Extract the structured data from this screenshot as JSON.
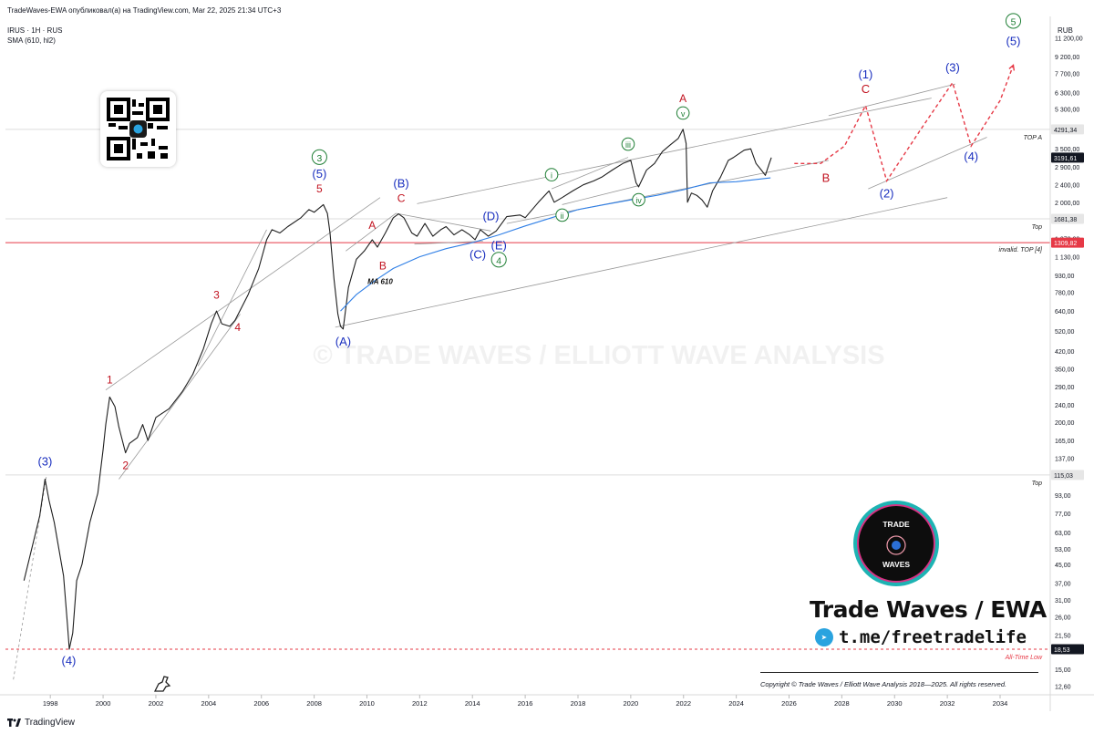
{
  "header": {
    "publisher_line": "TradeWaves-EWA опубликовал(а) на TradingView.com, Mar 22, 2025 21:34 UTC+3",
    "symbol_line": "IRUS · 1H · RUS",
    "indicator_line": "SMA (610, hl2)",
    "currency": "RUB"
  },
  "footer": {
    "brand": "TradingView",
    "copyright": "Copyright © Trade Waves / Elliott Wave Analysis 2018—2025. All rights reserved."
  },
  "branding": {
    "logo_top": "TRADE",
    "logo_bottom": "WAVES",
    "title": "Trade Waves / EWA",
    "telegram": "t.me/freetradelife",
    "watermark": "© TRADE WAVES / ELLIOTT WAVE ANALYSIS"
  },
  "colors": {
    "price": "#1e1e1e",
    "ma_line": "#2f7fe6",
    "blue_label": "#1a2fbf",
    "red_label": "#c1121f",
    "green_label": "#1e7e34",
    "projection": "#e63946",
    "hline": "#dddddd",
    "invalid_line": "#e63946"
  },
  "chart_data": {
    "type": "line",
    "scale": "log",
    "ylim": [
      11.5,
      14000
    ],
    "xlim": [
      1996.3,
      2035.9
    ],
    "x_ticks": [
      "1998",
      "2000",
      "2002",
      "2004",
      "2006",
      "2008",
      "2010",
      "2012",
      "2014",
      "2016",
      "2018",
      "2020",
      "2022",
      "2024",
      "2026",
      "2028",
      "2030",
      "2032",
      "2034"
    ],
    "y_ticks": [
      {
        "v": 12.6,
        "t": "12,60"
      },
      {
        "v": 15,
        "t": "15,00"
      },
      {
        "v": 21.5,
        "t": "21,50"
      },
      {
        "v": 26,
        "t": "26,00"
      },
      {
        "v": 31,
        "t": "31,00"
      },
      {
        "v": 37,
        "t": "37,00"
      },
      {
        "v": 45,
        "t": "45,00"
      },
      {
        "v": 53,
        "t": "53,00"
      },
      {
        "v": 63,
        "t": "63,00"
      },
      {
        "v": 77,
        "t": "77,00"
      },
      {
        "v": 93,
        "t": "93,00"
      },
      {
        "v": 137,
        "t": "137,00"
      },
      {
        "v": 165,
        "t": "165,00"
      },
      {
        "v": 200,
        "t": "200,00"
      },
      {
        "v": 240,
        "t": "240,00"
      },
      {
        "v": 290,
        "t": "290,00"
      },
      {
        "v": 350,
        "t": "350,00"
      },
      {
        "v": 420,
        "t": "420,00"
      },
      {
        "v": 520,
        "t": "520,00"
      },
      {
        "v": 640,
        "t": "640,00"
      },
      {
        "v": 780,
        "t": "780,00"
      },
      {
        "v": 930,
        "t": "930,00"
      },
      {
        "v": 1130,
        "t": "1 130,00"
      },
      {
        "v": 1370,
        "t": "1 370,00"
      },
      {
        "v": 2000,
        "t": "2 000,00"
      },
      {
        "v": 2400,
        "t": "2 400,00"
      },
      {
        "v": 2900,
        "t": "2 900,00"
      },
      {
        "v": 3500,
        "t": "3 500,00"
      },
      {
        "v": 5300,
        "t": "5 300,00"
      },
      {
        "v": 6300,
        "t": "6 300,00"
      },
      {
        "v": 7700,
        "t": "7 700,00"
      },
      {
        "v": 9200,
        "t": "9 200,00"
      },
      {
        "v": 11200,
        "t": "11 200,00"
      }
    ],
    "price_tags": [
      {
        "v": 4291.34,
        "t": "4291,34",
        "style": "gray"
      },
      {
        "v": 3191.61,
        "t": "3191,61",
        "style": "black"
      },
      {
        "v": 1681.38,
        "t": "1681,38",
        "style": "gray"
      },
      {
        "v": 1309.82,
        "t": "1309,82",
        "style": "red"
      },
      {
        "v": 115.03,
        "t": "115,03",
        "style": "gray"
      },
      {
        "v": 18.53,
        "t": "18,53",
        "style": "black"
      }
    ],
    "levels": [
      {
        "v": 4291.34,
        "label": "TOP A",
        "color": "#dddddd",
        "dashed": false
      },
      {
        "v": 1681.38,
        "label": "Top",
        "color": "#dddddd",
        "dashed": false
      },
      {
        "v": 1309.82,
        "label": "invalid. TOP [4]",
        "color": "#e63946",
        "dashed": false
      },
      {
        "v": 115.03,
        "label": "Top",
        "color": "#dddddd",
        "dashed": false
      },
      {
        "v": 18.53,
        "label": "All-Time Low",
        "color": "#e63946",
        "dashed": true
      }
    ],
    "series": [
      {
        "name": "IRUS",
        "points": [
          [
            1997.0,
            38
          ],
          [
            1997.6,
            75
          ],
          [
            1997.8,
            110
          ],
          [
            1997.95,
            88
          ],
          [
            1998.15,
            70
          ],
          [
            1998.3,
            55
          ],
          [
            1998.5,
            40
          ],
          [
            1998.65,
            24
          ],
          [
            1998.72,
            18.53
          ],
          [
            1998.85,
            22
          ],
          [
            1999.0,
            38
          ],
          [
            1999.2,
            45
          ],
          [
            1999.5,
            70
          ],
          [
            1999.8,
            95
          ],
          [
            2000.0,
            150
          ],
          [
            2000.1,
            195
          ],
          [
            2000.25,
            260
          ],
          [
            2000.45,
            235
          ],
          [
            2000.6,
            190
          ],
          [
            2000.85,
            145
          ],
          [
            2001.0,
            160
          ],
          [
            2001.3,
            170
          ],
          [
            2001.5,
            195
          ],
          [
            2001.7,
            165
          ],
          [
            2002.0,
            210
          ],
          [
            2002.5,
            230
          ],
          [
            2003.0,
            275
          ],
          [
            2003.4,
            330
          ],
          [
            2003.8,
            430
          ],
          [
            2004.1,
            560
          ],
          [
            2004.3,
            640
          ],
          [
            2004.5,
            560
          ],
          [
            2004.8,
            545
          ],
          [
            2005.0,
            580
          ],
          [
            2005.5,
            760
          ],
          [
            2005.9,
            1000
          ],
          [
            2006.2,
            1350
          ],
          [
            2006.4,
            1500
          ],
          [
            2006.7,
            1450
          ],
          [
            2007.0,
            1550
          ],
          [
            2007.5,
            1700
          ],
          [
            2007.8,
            1850
          ],
          [
            2008.0,
            1800
          ],
          [
            2008.35,
            1950
          ],
          [
            2008.5,
            1780
          ],
          [
            2008.6,
            1450
          ],
          [
            2008.75,
            900
          ],
          [
            2008.9,
            620
          ],
          [
            2009.0,
            545
          ],
          [
            2009.1,
            530
          ],
          [
            2009.3,
            820
          ],
          [
            2009.6,
            1100
          ],
          [
            2009.9,
            1200
          ],
          [
            2010.2,
            1350
          ],
          [
            2010.4,
            1250
          ],
          [
            2010.7,
            1450
          ],
          [
            2011.0,
            1700
          ],
          [
            2011.2,
            1770
          ],
          [
            2011.4,
            1700
          ],
          [
            2011.7,
            1450
          ],
          [
            2011.9,
            1400
          ],
          [
            2012.2,
            1600
          ],
          [
            2012.5,
            1400
          ],
          [
            2012.8,
            1500
          ],
          [
            2013.0,
            1550
          ],
          [
            2013.3,
            1420
          ],
          [
            2013.6,
            1500
          ],
          [
            2013.9,
            1420
          ],
          [
            2014.1,
            1350
          ],
          [
            2014.3,
            1500
          ],
          [
            2014.6,
            1400
          ],
          [
            2014.9,
            1480
          ],
          [
            2015.3,
            1720
          ],
          [
            2015.8,
            1750
          ],
          [
            2016.0,
            1700
          ],
          [
            2016.5,
            2000
          ],
          [
            2016.9,
            2250
          ],
          [
            2017.1,
            2000
          ],
          [
            2017.4,
            2100
          ],
          [
            2017.8,
            2250
          ],
          [
            2018.2,
            2400
          ],
          [
            2018.6,
            2500
          ],
          [
            2018.9,
            2600
          ],
          [
            2019.3,
            2800
          ],
          [
            2019.7,
            3000
          ],
          [
            2020.0,
            3100
          ],
          [
            2020.2,
            2450
          ],
          [
            2020.3,
            2350
          ],
          [
            2020.6,
            2800
          ],
          [
            2020.9,
            3000
          ],
          [
            2021.2,
            3400
          ],
          [
            2021.5,
            3650
          ],
          [
            2021.8,
            3900
          ],
          [
            2021.98,
            4291
          ],
          [
            2022.1,
            3700
          ],
          [
            2022.15,
            2000
          ],
          [
            2022.3,
            2200
          ],
          [
            2022.5,
            2150
          ],
          [
            2022.7,
            2050
          ],
          [
            2022.9,
            1900
          ],
          [
            2023.1,
            2250
          ],
          [
            2023.4,
            2600
          ],
          [
            2023.7,
            3100
          ],
          [
            2023.9,
            3200
          ],
          [
            2024.3,
            3450
          ],
          [
            2024.55,
            3500
          ],
          [
            2024.75,
            3000
          ],
          [
            2024.95,
            2800
          ],
          [
            2025.1,
            2650
          ],
          [
            2025.25,
            3000
          ],
          [
            2025.33,
            3191.61
          ]
        ]
      },
      {
        "name": "SMA (610, hl2)",
        "points": [
          [
            2009.0,
            640
          ],
          [
            2009.6,
            760
          ],
          [
            2010.3,
            880
          ],
          [
            2011.0,
            1000
          ],
          [
            2012.0,
            1130
          ],
          [
            2013.0,
            1230
          ],
          [
            2014.0,
            1310
          ],
          [
            2015.0,
            1420
          ],
          [
            2016.0,
            1560
          ],
          [
            2017.0,
            1700
          ],
          [
            2018.0,
            1850
          ],
          [
            2019.0,
            1950
          ],
          [
            2020.0,
            2050
          ],
          [
            2021.0,
            2150
          ],
          [
            2022.0,
            2280
          ],
          [
            2023.0,
            2450
          ],
          [
            2024.0,
            2480
          ],
          [
            2025.3,
            2580
          ]
        ]
      },
      {
        "name": "projection",
        "points": [
          [
            2026.2,
            3000
          ],
          [
            2027.2,
            3000
          ],
          [
            2028.1,
            3600
          ],
          [
            2028.9,
            5500
          ],
          [
            2029.7,
            2500
          ],
          [
            2031.0,
            4300
          ],
          [
            2032.2,
            7000
          ],
          [
            2032.9,
            3600
          ],
          [
            2034.0,
            5800
          ],
          [
            2034.5,
            8400
          ]
        ]
      }
    ],
    "annotations": [
      {
        "t": "(3)",
        "x": 1997.8,
        "v": 113,
        "c": "blue",
        "s": 13,
        "dy": -12
      },
      {
        "t": "(4)",
        "x": 1998.7,
        "v": 18.53,
        "c": "blue",
        "s": 13,
        "dy": 17
      },
      {
        "t": "1",
        "x": 2000.25,
        "v": 262,
        "c": "red",
        "s": 12,
        "dy": -14
      },
      {
        "t": "2",
        "x": 2000.85,
        "v": 140,
        "c": "red",
        "s": 12,
        "dy": 14
      },
      {
        "t": "3",
        "x": 2004.3,
        "v": 650,
        "c": "red",
        "s": 12,
        "dy": -12
      },
      {
        "t": "4",
        "x": 2005.1,
        "v": 540,
        "c": "red",
        "s": 12,
        "dy": 4
      },
      {
        "t": "5",
        "x": 2008.2,
        "v": 1980,
        "c": "red",
        "s": 12,
        "dy": -12
      },
      {
        "t": "(5)",
        "x": 2008.2,
        "v": 1980,
        "c": "blue",
        "s": 13,
        "dy": -28
      },
      {
        "t": "3",
        "x": 2008.2,
        "v": 1980,
        "c": "green",
        "s": 13,
        "dy": -46,
        "circle": true
      },
      {
        "t": "(A)",
        "x": 2009.1,
        "v": 520,
        "c": "blue",
        "s": 13,
        "dy": 16
      },
      {
        "t": "A",
        "x": 2010.2,
        "v": 1350,
        "c": "red",
        "s": 12,
        "dy": -12
      },
      {
        "t": "B",
        "x": 2010.6,
        "v": 1150,
        "c": "red",
        "s": 12,
        "dy": 16
      },
      {
        "t": "C",
        "x": 2011.3,
        "v": 1790,
        "c": "red",
        "s": 12,
        "dy": -12
      },
      {
        "t": "(B)",
        "x": 2011.3,
        "v": 1790,
        "c": "blue",
        "s": 13,
        "dy": -28
      },
      {
        "t": "(D)",
        "x": 2014.7,
        "v": 1480,
        "c": "blue",
        "s": 13,
        "dy": -12
      },
      {
        "t": "(C)",
        "x": 2014.2,
        "v": 1320,
        "c": "blue",
        "s": 13,
        "dy": 18
      },
      {
        "t": "(E)",
        "x": 2015.0,
        "v": 1480,
        "c": "blue",
        "s": 13,
        "dy": 20
      },
      {
        "t": "4",
        "x": 2015.0,
        "v": 1480,
        "c": "green",
        "s": 13,
        "dy": 36,
        "circle": true
      },
      {
        "t": "i",
        "x": 2017.0,
        "v": 2250,
        "c": "green",
        "s": 11,
        "dy": -14,
        "circle": true
      },
      {
        "t": "ii",
        "x": 2017.4,
        "v": 2000,
        "c": "green",
        "s": 11,
        "dy": 18,
        "circle": true
      },
      {
        "t": "iii",
        "x": 2019.9,
        "v": 3100,
        "c": "green",
        "s": 11,
        "dy": -14,
        "circle": true
      },
      {
        "t": "iv",
        "x": 2020.3,
        "v": 2350,
        "c": "green",
        "s": 11,
        "dy": 18,
        "circle": true
      },
      {
        "t": "v",
        "x": 2021.98,
        "v": 4291,
        "c": "green",
        "s": 11,
        "dy": -14,
        "circle": true
      },
      {
        "t": "A",
        "x": 2021.98,
        "v": 4291,
        "c": "red",
        "s": 12,
        "dy": -30
      },
      {
        "t": "B",
        "x": 2027.4,
        "v": 3000,
        "c": "red",
        "s": 13,
        "dy": 20
      },
      {
        "t": "C",
        "x": 2028.9,
        "v": 5500,
        "c": "red",
        "s": 13,
        "dy": -14
      },
      {
        "t": "(1)",
        "x": 2028.9,
        "v": 5500,
        "c": "blue",
        "s": 13,
        "dy": -30
      },
      {
        "t": "(2)",
        "x": 2029.7,
        "v": 2500,
        "c": "blue",
        "s": 13,
        "dy": 18
      },
      {
        "t": "(3)",
        "x": 2032.2,
        "v": 7000,
        "c": "blue",
        "s": 13,
        "dy": -12
      },
      {
        "t": "(4)",
        "x": 2032.9,
        "v": 3600,
        "c": "blue",
        "s": 13,
        "dy": 16
      },
      {
        "t": "(5)",
        "x": 2034.5,
        "v": 8400,
        "c": "blue",
        "s": 13,
        "dy": -22
      },
      {
        "t": "5",
        "x": 2034.5,
        "v": 8400,
        "c": "green",
        "s": 13,
        "dy": -44,
        "circle": true
      },
      {
        "t": "MA 610",
        "x": 2010.5,
        "v": 850,
        "c": "black",
        "s": 8,
        "dy": 0,
        "italic": true
      }
    ],
    "guides": [
      [
        1996.6,
        13.5,
        1997.85,
        113
      ],
      [
        2000.1,
        280,
        2010.5,
        2100
      ],
      [
        2008.8,
        540,
        2032.0,
        2100
      ],
      [
        2003.6,
        360,
        2006.2,
        1500
      ],
      [
        2000.6,
        110,
        2005.2,
        620
      ],
      [
        2009.2,
        1200,
        2011.1,
        1780
      ],
      [
        2011.1,
        1780,
        2014.7,
        1480
      ],
      [
        2011.8,
        1290,
        2014.4,
        1330
      ],
      [
        2011.9,
        1970,
        2031.4,
        5950
      ],
      [
        2017.0,
        2300,
        2019.9,
        3200
      ],
      [
        2017.4,
        1950,
        2020.3,
        2380
      ],
      [
        2015.3,
        1600,
        2027.5,
        3100
      ],
      [
        2027.5,
        4950,
        2032.3,
        6900
      ],
      [
        2029.0,
        2300,
        2033.5,
        3950
      ]
    ]
  }
}
